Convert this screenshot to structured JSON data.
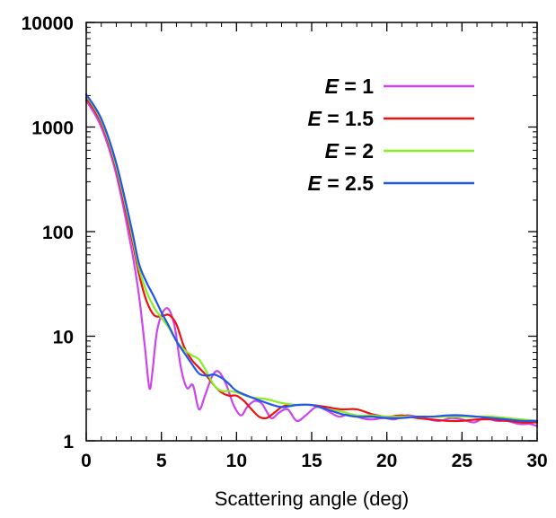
{
  "chart_data": {
    "type": "line",
    "title": "",
    "xlabel": "Scattering angle (deg)",
    "ylabel": "",
    "xlim": [
      0,
      30
    ],
    "ylim": [
      1,
      10000
    ],
    "yscale": "log",
    "grid": false,
    "legend_position": "top-right",
    "x_ticks": [
      "0",
      "5",
      "10",
      "15",
      "20",
      "25",
      "30"
    ],
    "y_ticks": [
      "1",
      "10",
      "100",
      "1000",
      "10000"
    ],
    "series": [
      {
        "name": "E = 1",
        "legend_var": "E",
        "legend_val": " = 1",
        "color": "#cc44ee",
        "x": [
          0,
          1,
          2,
          3,
          3.5,
          3.9,
          4.2,
          4.4,
          4.7,
          5.1,
          5.5,
          5.9,
          6.3,
          6.7,
          7.1,
          7.5,
          7.9,
          8.4,
          8.8,
          9.3,
          9.8,
          10.3,
          10.7,
          11.2,
          11.7,
          12.3,
          12.8,
          13.4,
          14,
          14.6,
          15.3,
          16,
          16.8,
          17.5,
          18.3,
          19,
          19.8,
          20.5,
          21.3,
          22,
          22.8,
          23.5,
          24.3,
          25,
          25.8,
          26.5,
          27.3,
          28,
          28.8,
          29.5,
          30
        ],
        "values": [
          1800,
          1000,
          350,
          70,
          25,
          8,
          3.2,
          4.5,
          11,
          17,
          18,
          12,
          5,
          3.2,
          3.4,
          2.0,
          2.7,
          4.2,
          4.6,
          3.5,
          2.2,
          1.75,
          2.1,
          2.4,
          2.25,
          1.65,
          1.85,
          2.0,
          1.55,
          1.75,
          2.1,
          1.95,
          1.7,
          1.8,
          1.65,
          1.6,
          1.65,
          1.6,
          1.75,
          1.7,
          1.6,
          1.55,
          1.65,
          1.6,
          1.5,
          1.65,
          1.55,
          1.55,
          1.45,
          1.45,
          1.38
        ]
      },
      {
        "name": "E = 1.5",
        "legend_var": "E",
        "legend_val": " = 1.5",
        "color": "#ee1111",
        "x": [
          0,
          1,
          2,
          3,
          3.5,
          4,
          4.5,
          5,
          5.5,
          6,
          6.5,
          7,
          7.5,
          8,
          8.5,
          9,
          9.5,
          10,
          10.5,
          11,
          11.5,
          12,
          12.5,
          13,
          13.5,
          14,
          15,
          16,
          17,
          18,
          19,
          20,
          21,
          22,
          23,
          24,
          25,
          26,
          27,
          28,
          29,
          30
        ],
        "values": [
          1900,
          1100,
          400,
          90,
          40,
          22,
          16,
          15.5,
          16,
          13,
          8,
          6,
          5,
          4.2,
          3.4,
          2.9,
          2.7,
          2.7,
          2.4,
          2.0,
          1.7,
          1.65,
          1.85,
          2.1,
          2.2,
          2.2,
          2.2,
          2.1,
          2.0,
          2.0,
          1.8,
          1.7,
          1.75,
          1.65,
          1.6,
          1.55,
          1.55,
          1.6,
          1.6,
          1.55,
          1.5,
          1.5
        ]
      },
      {
        "name": "E = 2",
        "legend_var": "E",
        "legend_val": " = 2",
        "color": "#88ee22",
        "x": [
          0,
          1,
          2,
          3,
          3.5,
          4,
          4.5,
          5,
          5.5,
          6,
          6.5,
          7,
          7.5,
          8,
          8.5,
          9,
          9.5,
          10,
          11,
          12,
          13,
          14,
          15,
          16,
          17,
          18,
          19,
          20,
          21,
          22,
          23,
          24,
          25,
          26,
          27,
          28,
          29,
          30
        ],
        "values": [
          2000,
          1150,
          420,
          100,
          45,
          27,
          19,
          15,
          12,
          9,
          7.5,
          6.6,
          6.0,
          4.6,
          3.4,
          3.0,
          3.0,
          2.9,
          2.6,
          2.5,
          2.3,
          2.2,
          2.2,
          2.0,
          1.9,
          1.75,
          1.75,
          1.7,
          1.7,
          1.7,
          1.7,
          1.7,
          1.7,
          1.7,
          1.7,
          1.65,
          1.6,
          1.55
        ]
      },
      {
        "name": "E = 2.5",
        "legend_var": "E",
        "legend_val": " = 2.5",
        "color": "#2255ee",
        "x": [
          0,
          1,
          2,
          3,
          3.5,
          4,
          4.5,
          5,
          5.5,
          6,
          6.5,
          7,
          7.5,
          8,
          8.5,
          9,
          9.5,
          10,
          11,
          12,
          13,
          14,
          15,
          16,
          17,
          18,
          19,
          20,
          21,
          22,
          23,
          24,
          25,
          26,
          27,
          28,
          29,
          30
        ],
        "values": [
          2050,
          1200,
          450,
          110,
          50,
          33,
          24,
          17,
          12.5,
          9,
          7,
          5.5,
          4.4,
          4.2,
          4.3,
          4.0,
          3.5,
          3.0,
          2.6,
          2.3,
          2.1,
          2.2,
          2.2,
          2.0,
          1.8,
          1.7,
          1.7,
          1.65,
          1.65,
          1.7,
          1.7,
          1.75,
          1.75,
          1.7,
          1.65,
          1.6,
          1.55,
          1.55
        ]
      }
    ]
  }
}
